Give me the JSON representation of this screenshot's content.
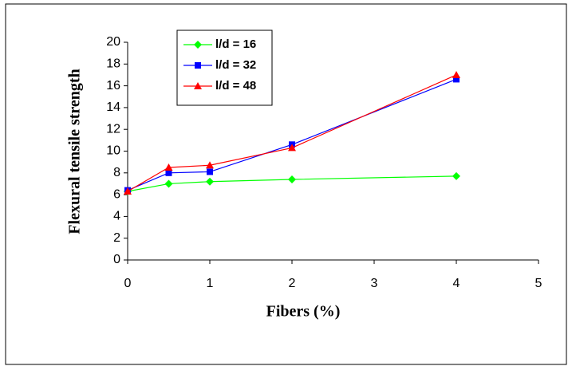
{
  "chart_data": {
    "type": "line",
    "x_label": "Fibers (%)",
    "y_label": "Flexural tensile strength",
    "x": [
      0,
      0.5,
      1,
      2,
      4
    ],
    "series": [
      {
        "name": "l/d = 16",
        "color": "#00ff00",
        "marker": "diamond",
        "values": [
          6.3,
          7.0,
          7.2,
          7.4,
          7.7
        ]
      },
      {
        "name": "l/d = 32",
        "color": "#0000ff",
        "marker": "square",
        "values": [
          6.4,
          8.0,
          8.1,
          10.6,
          16.6
        ]
      },
      {
        "name": "l/d = 48",
        "color": "#ff0000",
        "marker": "triangle",
        "values": [
          6.3,
          8.5,
          8.7,
          10.3,
          17.0
        ]
      }
    ],
    "xlim": [
      0,
      5
    ],
    "xticks": [
      0,
      1,
      2,
      3,
      4,
      5
    ],
    "ylim": [
      0,
      20
    ],
    "yticks": [
      0,
      2,
      4,
      6,
      8,
      10,
      12,
      14,
      16,
      18,
      20
    ],
    "grid": false,
    "legend": "top-left"
  }
}
